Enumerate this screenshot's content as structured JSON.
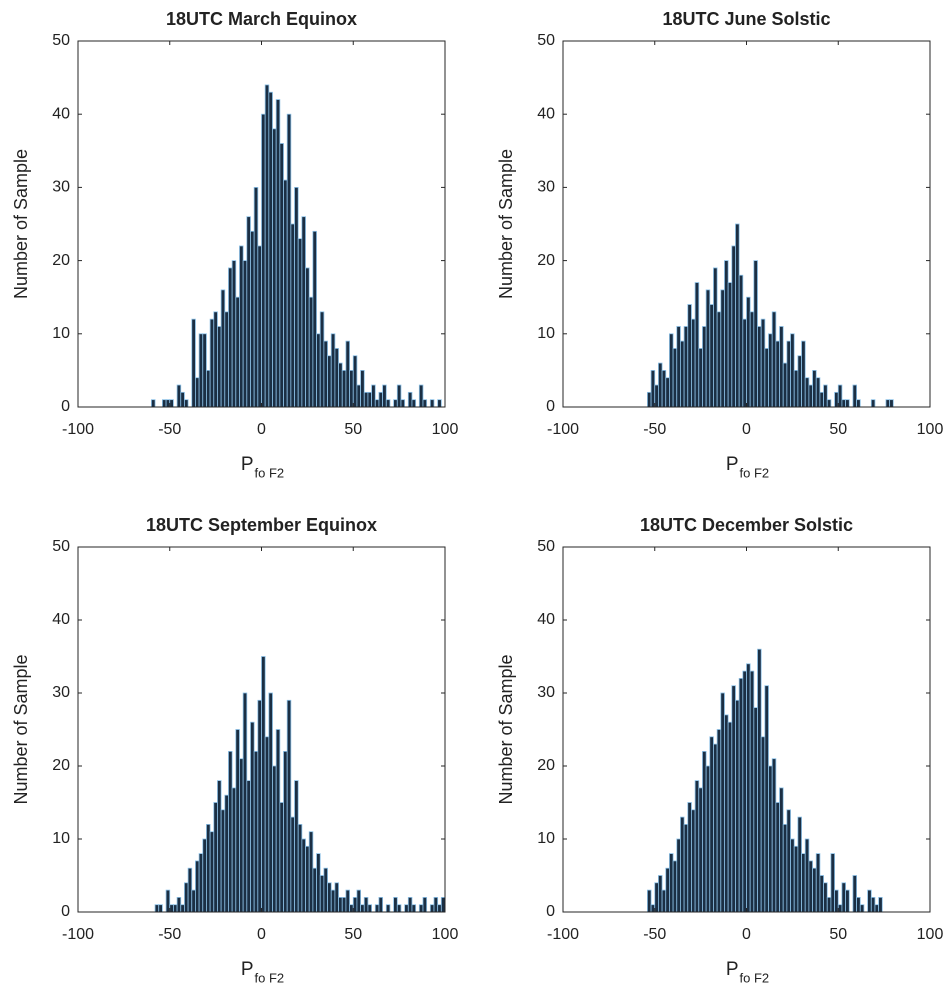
{
  "chart_data": [
    {
      "type": "histogram",
      "title": "18UTC March Equinox",
      "x_label": "P",
      "x_label_sub": "fo F2",
      "y_label": "Number of Sample",
      "bins": [
        -60,
        -58,
        -56,
        -54,
        -52,
        -50,
        -48,
        -46,
        -44,
        -42,
        -40,
        -38,
        -36,
        -34,
        -32,
        -30,
        -28,
        -26,
        -24,
        -22,
        -20,
        -18,
        -16,
        -14,
        -12,
        -10,
        -8,
        -6,
        -4,
        -2,
        0,
        2,
        4,
        6,
        8,
        10,
        12,
        14,
        16,
        18,
        20,
        22,
        24,
        26,
        28,
        30,
        32,
        34,
        36,
        38,
        40,
        42,
        44,
        46,
        48,
        50,
        52,
        54,
        56,
        58,
        60,
        62,
        64,
        66,
        68,
        70,
        72,
        74,
        76,
        78,
        80,
        82,
        84,
        86,
        88,
        90,
        92,
        94,
        96,
        98,
        100
      ],
      "values": [
        1,
        0,
        0,
        1,
        1,
        1,
        0,
        3,
        2,
        1,
        0,
        12,
        4,
        10,
        10,
        5,
        12,
        13,
        11,
        16,
        13,
        19,
        20,
        15,
        22,
        20,
        26,
        24,
        30,
        22,
        40,
        44,
        43,
        38,
        42,
        36,
        31,
        40,
        25,
        30,
        23,
        26,
        19,
        15,
        24,
        10,
        13,
        9,
        7,
        10,
        8,
        6,
        5,
        9,
        5,
        7,
        3,
        5,
        2,
        2,
        3,
        1,
        2,
        3,
        1,
        0,
        1,
        3,
        1,
        0,
        2,
        1,
        0,
        3,
        1,
        0,
        1,
        0,
        1,
        0
      ],
      "color": "#1b2f44",
      "edge_color": "#8cc0e6",
      "xlim": [
        -100,
        100
      ],
      "ylim": [
        0,
        50
      ],
      "xticks": [
        -100,
        -50,
        0,
        50,
        100
      ],
      "yticks": [
        0,
        10,
        20,
        30,
        40,
        50
      ]
    },
    {
      "type": "histogram",
      "title": "18UTC June Solstic",
      "x_label": "P",
      "x_label_sub": "fo F2",
      "y_label": "Number of Sample",
      "bins": [
        -60,
        -58,
        -56,
        -54,
        -52,
        -50,
        -48,
        -46,
        -44,
        -42,
        -40,
        -38,
        -36,
        -34,
        -32,
        -30,
        -28,
        -26,
        -24,
        -22,
        -20,
        -18,
        -16,
        -14,
        -12,
        -10,
        -8,
        -6,
        -4,
        -2,
        0,
        2,
        4,
        6,
        8,
        10,
        12,
        14,
        16,
        18,
        20,
        22,
        24,
        26,
        28,
        30,
        32,
        34,
        36,
        38,
        40,
        42,
        44,
        46,
        48,
        50,
        52,
        54,
        56,
        58,
        60,
        62,
        64,
        66,
        68,
        70,
        72,
        74,
        76,
        78,
        80,
        82,
        84,
        86,
        88,
        90,
        92,
        94,
        96,
        98,
        100
      ],
      "values": [
        0,
        0,
        0,
        2,
        5,
        3,
        6,
        5,
        4,
        10,
        8,
        11,
        9,
        11,
        14,
        12,
        17,
        8,
        11,
        16,
        14,
        19,
        13,
        16,
        20,
        17,
        22,
        25,
        18,
        12,
        15,
        13,
        20,
        11,
        12,
        8,
        10,
        13,
        9,
        11,
        6,
        9,
        10,
        5,
        7,
        9,
        4,
        3,
        5,
        4,
        2,
        3,
        1,
        0,
        2,
        3,
        1,
        1,
        0,
        3,
        1,
        0,
        0,
        0,
        1,
        0,
        0,
        0,
        1,
        1,
        0,
        0,
        0,
        0,
        0,
        0,
        0,
        0,
        0,
        0
      ],
      "color": "#1b2f44",
      "edge_color": "#8cc0e6",
      "xlim": [
        -100,
        100
      ],
      "ylim": [
        0,
        50
      ],
      "xticks": [
        -100,
        -50,
        0,
        50,
        100
      ],
      "yticks": [
        0,
        10,
        20,
        30,
        40,
        50
      ]
    },
    {
      "type": "histogram",
      "title": "18UTC September Equinox",
      "x_label": "P",
      "x_label_sub": "fo F2",
      "y_label": "Number of Sample",
      "bins": [
        -60,
        -58,
        -56,
        -54,
        -52,
        -50,
        -48,
        -46,
        -44,
        -42,
        -40,
        -38,
        -36,
        -34,
        -32,
        -30,
        -28,
        -26,
        -24,
        -22,
        -20,
        -18,
        -16,
        -14,
        -12,
        -10,
        -8,
        -6,
        -4,
        -2,
        0,
        2,
        4,
        6,
        8,
        10,
        12,
        14,
        16,
        18,
        20,
        22,
        24,
        26,
        28,
        30,
        32,
        34,
        36,
        38,
        40,
        42,
        44,
        46,
        48,
        50,
        52,
        54,
        56,
        58,
        60,
        62,
        64,
        66,
        68,
        70,
        72,
        74,
        76,
        78,
        80,
        82,
        84,
        86,
        88,
        90,
        92,
        94,
        96,
        98,
        100
      ],
      "values": [
        0,
        1,
        1,
        0,
        3,
        1,
        1,
        2,
        1,
        4,
        6,
        3,
        7,
        8,
        10,
        12,
        11,
        15,
        18,
        14,
        16,
        22,
        17,
        25,
        21,
        30,
        18,
        26,
        22,
        29,
        35,
        24,
        30,
        20,
        25,
        15,
        22,
        29,
        13,
        18,
        12,
        10,
        9,
        11,
        6,
        8,
        5,
        6,
        4,
        3,
        4,
        2,
        2,
        3,
        1,
        2,
        3,
        1,
        2,
        1,
        0,
        1,
        2,
        0,
        1,
        0,
        2,
        1,
        0,
        1,
        2,
        1,
        0,
        1,
        2,
        0,
        1,
        2,
        1,
        2
      ],
      "color": "#1b2f44",
      "edge_color": "#8cc0e6",
      "xlim": [
        -100,
        100
      ],
      "ylim": [
        0,
        50
      ],
      "xticks": [
        -100,
        -50,
        0,
        50,
        100
      ],
      "yticks": [
        0,
        10,
        20,
        30,
        40,
        50
      ]
    },
    {
      "type": "histogram",
      "title": "18UTC December Solstic",
      "x_label": "P",
      "x_label_sub": "fo F2",
      "y_label": "Number of Sample",
      "bins": [
        -60,
        -58,
        -56,
        -54,
        -52,
        -50,
        -48,
        -46,
        -44,
        -42,
        -40,
        -38,
        -36,
        -34,
        -32,
        -30,
        -28,
        -26,
        -24,
        -22,
        -20,
        -18,
        -16,
        -14,
        -12,
        -10,
        -8,
        -6,
        -4,
        -2,
        0,
        2,
        4,
        6,
        8,
        10,
        12,
        14,
        16,
        18,
        20,
        22,
        24,
        26,
        28,
        30,
        32,
        34,
        36,
        38,
        40,
        42,
        44,
        46,
        48,
        50,
        52,
        54,
        56,
        58,
        60,
        62,
        64,
        66,
        68,
        70,
        72,
        74,
        76,
        78,
        80,
        82,
        84,
        86,
        88,
        90,
        92,
        94,
        96,
        98,
        100
      ],
      "values": [
        0,
        0,
        0,
        3,
        1,
        4,
        5,
        3,
        6,
        8,
        7,
        10,
        13,
        12,
        15,
        14,
        18,
        17,
        22,
        20,
        24,
        23,
        25,
        30,
        27,
        26,
        31,
        29,
        32,
        33,
        34,
        33,
        28,
        36,
        24,
        31,
        20,
        21,
        15,
        17,
        12,
        14,
        10,
        9,
        13,
        8,
        10,
        7,
        6,
        8,
        5,
        4,
        2,
        8,
        3,
        1,
        4,
        3,
        0,
        5,
        2,
        1,
        0,
        3,
        2,
        1,
        2,
        0,
        0,
        0,
        0,
        0,
        0,
        0,
        0,
        0,
        0,
        0,
        0,
        0
      ],
      "color": "#1b2f44",
      "edge_color": "#8cc0e6",
      "xlim": [
        -100,
        100
      ],
      "ylim": [
        0,
        50
      ],
      "xticks": [
        -100,
        -50,
        0,
        50,
        100
      ],
      "yticks": [
        0,
        10,
        20,
        30,
        40,
        50
      ]
    }
  ]
}
